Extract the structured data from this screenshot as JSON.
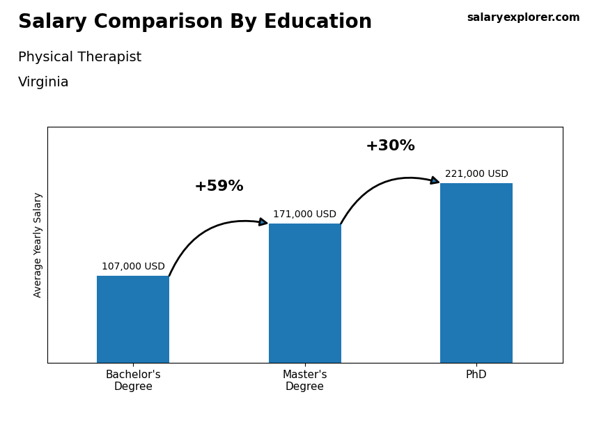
{
  "chart_data": {
    "type": "bar",
    "title": "Salary Comparison By Education",
    "subtitle": [
      "Physical Therapist",
      "Virginia"
    ],
    "ylabel": "Average Yearly Salary",
    "categories": [
      "Bachelor's\nDegree",
      "Master's\nDegree",
      "PhD"
    ],
    "values": [
      107000,
      171000,
      221000
    ],
    "value_labels": [
      "107,000 USD",
      "171,000 USD",
      "221,000 USD"
    ],
    "data_labels": true,
    "ylim": [
      0,
      290000
    ],
    "tick_labels": "x",
    "annotations": [
      {
        "text": "+59%",
        "from": "Bachelor's\nDegree",
        "to": "Master's\nDegree"
      },
      {
        "text": "+30%",
        "from": "Master's\nDegree",
        "to": "PhD"
      },
      {
        "text": "salary"
      },
      {
        "text": "explorer.com"
      }
    ]
  }
}
